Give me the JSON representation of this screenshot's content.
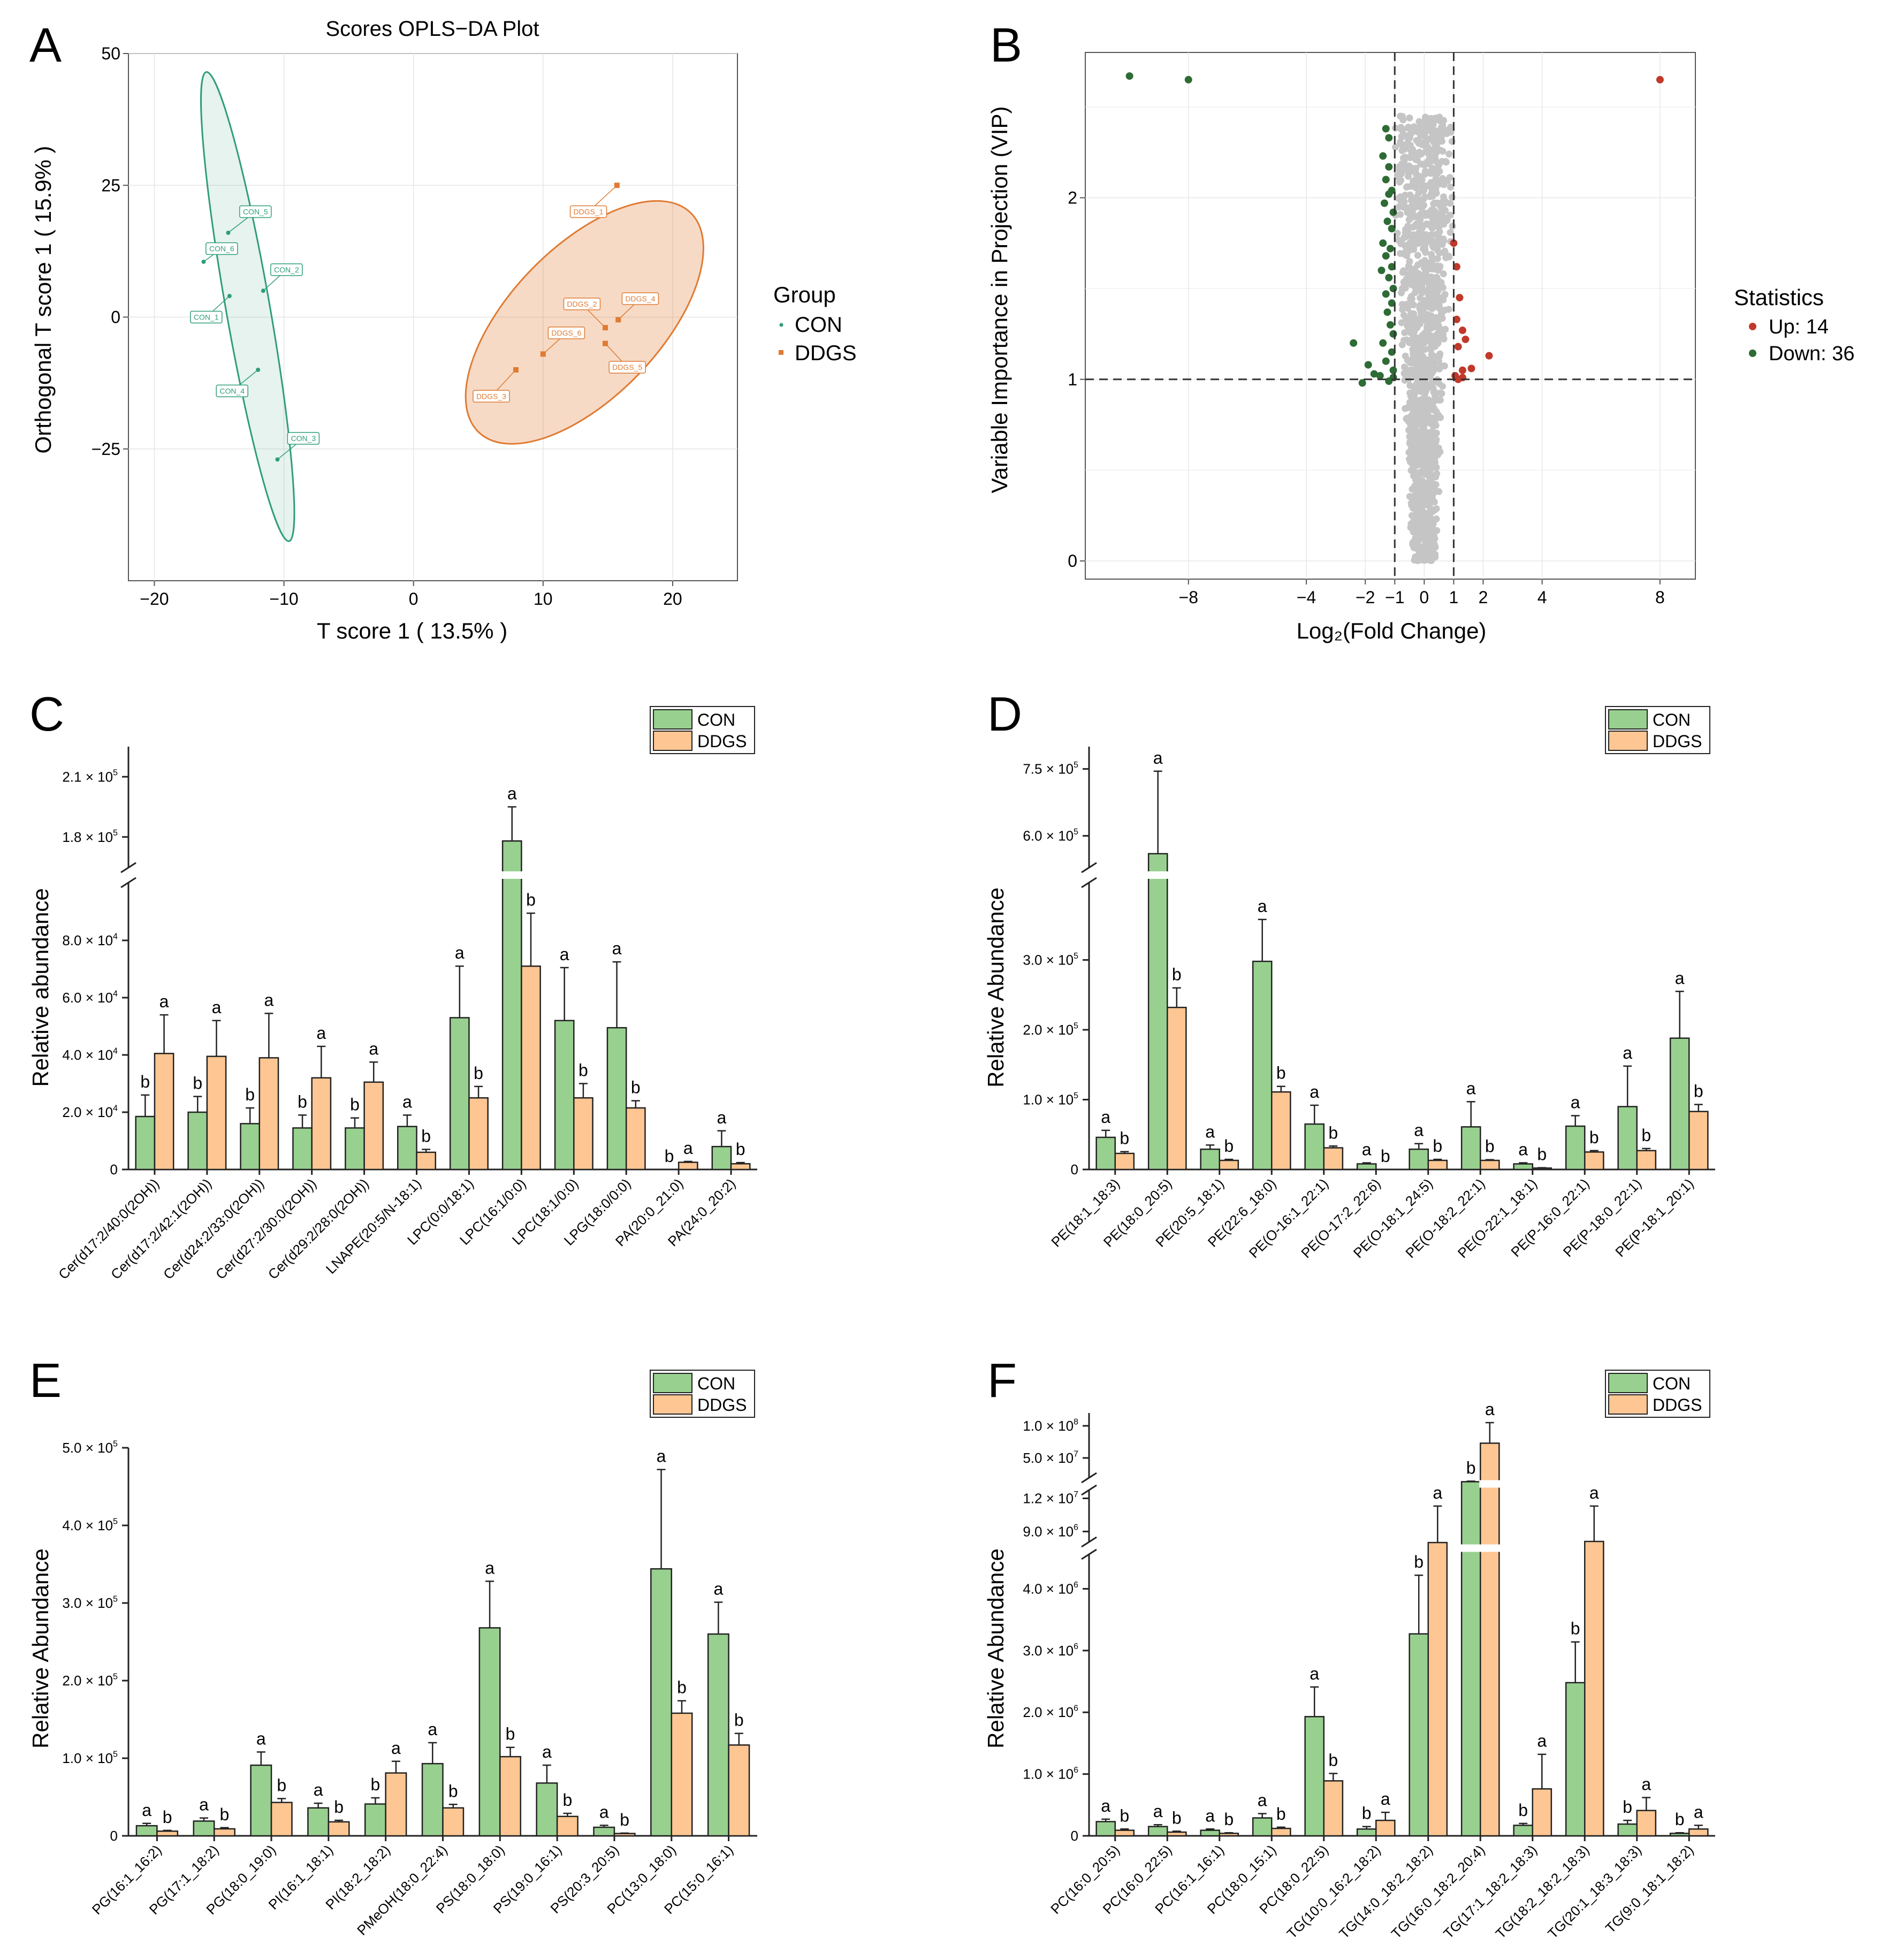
{
  "colors": {
    "con": "#98d08f",
    "ddgs": "#fdc692",
    "bar_edge": "#222222",
    "oplsCon": "#2f9e78",
    "oplsDdgs": "#e07b33",
    "up": "#c0392b",
    "down": "#2e6b35",
    "grey": "#c5c5c5"
  },
  "chart_data": [
    {
      "panel": "A",
      "type": "scatter",
      "title": "Scores OPLS−DA Plot",
      "xlabel": "T score 1 ( 13.5% )",
      "ylabel": "Orthogonal T score 1 ( 15.9% )",
      "xlim": [
        -22,
        25
      ],
      "ylim": [
        -50,
        50
      ],
      "xticks": [
        -20,
        -10,
        0,
        10,
        20
      ],
      "xtick_labels": [
        "−20",
        "−10",
        "0",
        "10",
        "20"
      ],
      "yticks": [
        -25,
        0,
        25,
        50
      ],
      "ytick_labels": [
        "−25",
        "0",
        "25",
        "50"
      ],
      "legend_title": "Group",
      "legend": [
        "CON",
        "DDGS"
      ],
      "series": [
        {
          "name": "CON",
          "points": [
            {
              "label": "CON_1",
              "x": -14.2,
              "y": 4,
              "lx": -16,
              "ly": 0
            },
            {
              "label": "CON_2",
              "x": -11.6,
              "y": 5,
              "lx": -9.8,
              "ly": 9
            },
            {
              "label": "CON_3",
              "x": -10.5,
              "y": -27,
              "lx": -8.5,
              "ly": -23
            },
            {
              "label": "CON_4",
              "x": -12.0,
              "y": -10,
              "lx": -14.0,
              "ly": -14
            },
            {
              "label": "CON_5",
              "x": -14.3,
              "y": 16,
              "lx": -12.2,
              "ly": 20
            },
            {
              "label": "CON_6",
              "x": -16.2,
              "y": 10.5,
              "lx": -14.8,
              "ly": 13
            }
          ]
        },
        {
          "name": "DDGS",
          "points": [
            {
              "label": "DDGS_1",
              "x": 15.7,
              "y": 25,
              "lx": 13.5,
              "ly": 20
            },
            {
              "label": "DDGS_2",
              "x": 14.8,
              "y": -2,
              "lx": 13.0,
              "ly": 2.5
            },
            {
              "label": "DDGS_3",
              "x": 7.9,
              "y": -10,
              "lx": 6.0,
              "ly": -15
            },
            {
              "label": "DDGS_4",
              "x": 15.8,
              "y": -0.5,
              "lx": 17.5,
              "ly": 3.5
            },
            {
              "label": "DDGS_5",
              "x": 14.8,
              "y": -5,
              "lx": 16.5,
              "ly": -9.5
            },
            {
              "label": "DDGS_6",
              "x": 10.0,
              "y": -7,
              "lx": 11.8,
              "ly": -3
            }
          ]
        }
      ]
    },
    {
      "panel": "B",
      "type": "scatter",
      "xlabel": "Log₂(Fold Change)",
      "ylabel": "Variable Importance in Projection (VIP)",
      "xlim": [
        -11.5,
        9.2
      ],
      "ylim": [
        -0.1,
        2.8
      ],
      "xticks": [
        -8,
        -4,
        -2,
        -1,
        0,
        1,
        2,
        4,
        8
      ],
      "xtick_labels": [
        "−8",
        "−4",
        "−2",
        "−1",
        "0",
        "1",
        "2",
        "4",
        "8"
      ],
      "yticks": [
        0,
        1,
        2
      ],
      "ytick_labels": [
        "0",
        "1",
        "2"
      ],
      "thresholds": {
        "x": [
          -1,
          1
        ],
        "y": 1
      },
      "legend_title": "Statistics",
      "legend": [
        "Up: 14",
        "Down: 36"
      ],
      "up": [
        [
          8.0,
          2.65
        ],
        [
          1.0,
          1.75
        ],
        [
          1.1,
          1.62
        ],
        [
          1.2,
          1.45
        ],
        [
          1.1,
          1.33
        ],
        [
          1.3,
          1.27
        ],
        [
          1.4,
          1.22
        ],
        [
          1.15,
          1.18
        ],
        [
          1.3,
          1.05
        ],
        [
          2.2,
          1.13
        ],
        [
          1.05,
          1.02
        ],
        [
          1.3,
          1.01
        ],
        [
          1.6,
          1.06
        ],
        [
          1.15,
          1.0
        ]
      ],
      "down": [
        [
          -10.0,
          2.67
        ],
        [
          -8.0,
          2.65
        ],
        [
          -1.3,
          2.38
        ],
        [
          -1.2,
          2.33
        ],
        [
          -1.4,
          2.23
        ],
        [
          -1.2,
          2.17
        ],
        [
          -1.3,
          2.1
        ],
        [
          -1.1,
          2.04
        ],
        [
          -1.2,
          2.02
        ],
        [
          -1.35,
          1.97
        ],
        [
          -1.05,
          1.92
        ],
        [
          -1.25,
          1.87
        ],
        [
          -1.1,
          1.83
        ],
        [
          -1.4,
          1.75
        ],
        [
          -1.15,
          1.72
        ],
        [
          -1.3,
          1.68
        ],
        [
          -1.1,
          1.62
        ],
        [
          -1.45,
          1.6
        ],
        [
          -1.2,
          1.56
        ],
        [
          -1.05,
          1.5
        ],
        [
          -1.3,
          1.47
        ],
        [
          -1.1,
          1.42
        ],
        [
          -1.25,
          1.37
        ],
        [
          -1.15,
          1.3
        ],
        [
          -1.05,
          1.25
        ],
        [
          -1.4,
          1.2
        ],
        [
          -2.4,
          1.2
        ],
        [
          -1.1,
          1.15
        ],
        [
          -1.3,
          1.1
        ],
        [
          -1.05,
          1.05
        ],
        [
          -1.9,
          1.08
        ],
        [
          -2.1,
          0.98
        ],
        [
          -1.5,
          1.02
        ],
        [
          -1.2,
          0.99
        ],
        [
          -1.7,
          1.03
        ],
        [
          -1.05,
          1.01
        ]
      ]
    },
    {
      "panel": "C",
      "type": "bar",
      "ylabel": "Relative abundance",
      "legend": [
        "CON",
        "DDGS"
      ],
      "lower": {
        "max": 100000,
        "ticks": [
          0,
          20000,
          40000,
          60000,
          80000
        ],
        "tick_labels": [
          {
            "base": "0",
            "exp": ""
          },
          {
            "base": "2.0 × 10",
            "exp": "4"
          },
          {
            "base": "4.0 × 10",
            "exp": "4"
          },
          {
            "base": "6.0 × 10",
            "exp": "4"
          },
          {
            "base": "8.0 × 10",
            "exp": "4"
          }
        ]
      },
      "upper": {
        "min": 165000,
        "max": 225000,
        "ticks": [
          180000,
          210000
        ],
        "tick_labels": [
          {
            "base": "1.8 × 10",
            "exp": "5"
          },
          {
            "base": "2.1 × 10",
            "exp": "5"
          }
        ]
      },
      "categories": [
        "Cer(d17:2/40:0(2OH))",
        "Cer(d17:2/42:1(2OH))",
        "Cer(d24:2/33:0(2OH))",
        "Cer(d27:2/30:0(2OH))",
        "Cer(d29:2/28:0(2OH))",
        "LNAPE(20:5/N-18:1)",
        "LPC(0:0/18:1)",
        "LPC(16:1/0:0)",
        "LPC(18:1/0:0)",
        "LPG(18:0/0:0)",
        "PA(20:0_21:0)",
        "PA(24:0_20:2)"
      ],
      "series": [
        {
          "name": "CON",
          "values": [
            18500,
            20000,
            16000,
            14500,
            14500,
            15000,
            53000,
            178000,
            52000,
            49500,
            0,
            8000
          ],
          "errors": [
            7500,
            5500,
            5500,
            4500,
            3500,
            4000,
            18000,
            17000,
            18500,
            23000,
            0,
            5500
          ],
          "letters": [
            "b",
            "b",
            "b",
            "b",
            "b",
            "a",
            "a",
            "a",
            "a",
            "a",
            "b",
            "a"
          ]
        },
        {
          "name": "DDGS",
          "values": [
            40500,
            39500,
            39000,
            32000,
            30500,
            6000,
            25000,
            71000,
            25000,
            21500,
            2500,
            2000
          ],
          "errors": [
            13500,
            12500,
            15500,
            11000,
            7000,
            1000,
            4000,
            18500,
            5000,
            2500,
            300,
            400
          ],
          "letters": [
            "a",
            "a",
            "a",
            "a",
            "a",
            "b",
            "b",
            "b",
            "b",
            "b",
            "a",
            "b"
          ]
        }
      ]
    },
    {
      "panel": "D",
      "type": "bar",
      "ylabel": "Relative Abundance",
      "legend": [
        "CON",
        "DDGS"
      ],
      "lower": {
        "max": 410000,
        "ticks": [
          0,
          100000,
          200000,
          300000
        ],
        "tick_labels": [
          {
            "base": "0",
            "exp": ""
          },
          {
            "base": "1.0 × 10",
            "exp": "5"
          },
          {
            "base": "2.0 × 10",
            "exp": "5"
          },
          {
            "base": "3.0 × 10",
            "exp": "5"
          }
        ]
      },
      "upper": {
        "min": 530000,
        "max": 800000,
        "ticks": [
          600000,
          750000
        ],
        "tick_labels": [
          {
            "base": "6.0 × 10",
            "exp": "5"
          },
          {
            "base": "7.5 × 10",
            "exp": "5"
          }
        ]
      },
      "categories": [
        "PE(18:1_18:3)",
        "PE(18:0_20:5)",
        "PE(20:5_18:1)",
        "PE(22:6_18:0)",
        "PE(O-16:1_22:1)",
        "PE(O-17:2_22:6)",
        "PE(O-18:1_24:5)",
        "PE(O-18:2_22:1)",
        "PE(O-22:1_18:1)",
        "PE(P-16:0_22:1)",
        "PE(P-18:0_22:1)",
        "PE(P-18:1_20:1)"
      ],
      "series": [
        {
          "name": "CON",
          "values": [
            46000,
            560000,
            29000,
            298000,
            65000,
            8000,
            29000,
            61000,
            8000,
            62000,
            90000,
            188000
          ],
          "errors": [
            10000,
            185000,
            6000,
            60000,
            27000,
            1500,
            8000,
            36000,
            1500,
            15000,
            58000,
            67000
          ],
          "letters": [
            "a",
            "a",
            "a",
            "a",
            "a",
            "a",
            "a",
            "a",
            "a",
            "a",
            "a",
            "a"
          ]
        },
        {
          "name": "DDGS",
          "values": [
            23000,
            232000,
            13000,
            111000,
            31000,
            0,
            13000,
            13000,
            2000,
            25000,
            27000,
            83000
          ],
          "errors": [
            2500,
            28000,
            1500,
            8000,
            2500,
            0,
            1500,
            1000,
            500,
            2000,
            3000,
            10000
          ],
          "letters": [
            "b",
            "b",
            "b",
            "b",
            "b",
            "b",
            "b",
            "b",
            "b",
            "b",
            "b",
            "b"
          ]
        }
      ]
    },
    {
      "panel": "E",
      "type": "bar",
      "ylabel": "Relative Abundance",
      "legend": [
        "CON",
        "DDGS"
      ],
      "lower": {
        "max": 500000,
        "ticks": [
          0,
          100000,
          200000,
          300000,
          400000,
          500000
        ],
        "tick_labels": [
          {
            "base": "0",
            "exp": ""
          },
          {
            "base": "1.0 × 10",
            "exp": "5"
          },
          {
            "base": "2.0 × 10",
            "exp": "5"
          },
          {
            "base": "3.0 × 10",
            "exp": "5"
          },
          {
            "base": "4.0 × 10",
            "exp": "5"
          },
          {
            "base": "5.0 × 10",
            "exp": "5"
          }
        ]
      },
      "categories": [
        "PG(16:1_16:2)",
        "PG(17:1_18:2)",
        "PG(18:0_19:0)",
        "PI(16:1_18:1)",
        "PI(18:2_18:2)",
        "PMeOH(18:0_22:4)",
        "PS(18:0_18:0)",
        "PS(19:0_16:1)",
        "PS(20:3_20:5)",
        "PC(13:0_18:0)",
        "PC(15:0_16:1)"
      ],
      "series": [
        {
          "name": "CON",
          "values": [
            13000,
            19000,
            91000,
            36000,
            41000,
            93000,
            268000,
            68000,
            11000,
            344000,
            260000
          ],
          "errors": [
            3000,
            4000,
            17000,
            6000,
            8000,
            27000,
            60000,
            23000,
            2500,
            128000,
            41000
          ],
          "letters": [
            "a",
            "a",
            "a",
            "a",
            "b",
            "a",
            "a",
            "a",
            "a",
            "a",
            "a"
          ]
        },
        {
          "name": "DDGS",
          "values": [
            6000,
            9000,
            43000,
            18000,
            81000,
            36000,
            102000,
            25000,
            3000,
            158000,
            117000
          ],
          "errors": [
            1000,
            1500,
            5000,
            2000,
            15000,
            4500,
            12000,
            4000,
            500,
            16000,
            15000
          ],
          "letters": [
            "b",
            "b",
            "b",
            "b",
            "a",
            "b",
            "b",
            "b",
            "b",
            "b",
            "b"
          ]
        }
      ]
    },
    {
      "panel": "F",
      "type": "bar",
      "ylabel": "Relative Abundance",
      "legend": [
        "CON",
        "DDGS"
      ],
      "lower": {
        "max": 4550000,
        "ticks": [
          0,
          1000000,
          2000000,
          3000000,
          4000000
        ],
        "tick_labels": [
          {
            "base": "0",
            "exp": ""
          },
          {
            "base": "1.0 × 10",
            "exp": "6"
          },
          {
            "base": "2.0 × 10",
            "exp": "6"
          },
          {
            "base": "3.0 × 10",
            "exp": "6"
          },
          {
            "base": "4.0 × 10",
            "exp": "6"
          }
        ]
      },
      "middle": {
        "min": 8100000,
        "max": 12700000,
        "ticks": [
          9000000,
          12000000
        ],
        "tick_labels": [
          {
            "base": "9.0 × 10",
            "exp": "6"
          },
          {
            "base": "1.2 × 10",
            "exp": "7"
          }
        ]
      },
      "upper": {
        "min": 20000000,
        "max": 120000000,
        "ticks": [
          50000000,
          100000000
        ],
        "tick_labels": [
          {
            "base": "5.0 × 10",
            "exp": "7"
          },
          {
            "base": "1.0 × 10",
            "exp": "8"
          }
        ]
      },
      "categories": [
        "PC(16:0_20:5)",
        "PC(16:0_22:5)",
        "PC(16:1_16:1)",
        "PC(18:0_15:1)",
        "PC(18:0_22:5)",
        "TG(10:0_16:2_18:2)",
        "TG(14:0_18:2_18:2)",
        "TG(16:0_18:2_20:4)",
        "TG(17:1_18:2_18:3)",
        "TG(18:2_18:2_18:3)",
        "TG(20:1_18:3_18:3)",
        "TG(9:0_18:1_18:2)"
      ],
      "series": [
        {
          "name": "CON",
          "values": [
            230000,
            150000,
            90000,
            290000,
            1930000,
            110000,
            3270000,
            13000000,
            170000,
            2480000,
            190000,
            40000
          ],
          "errors": [
            40000,
            30000,
            20000,
            70000,
            480000,
            40000,
            950000,
            900000,
            30000,
            660000,
            60000,
            10000
          ],
          "letters": [
            "a",
            "a",
            "a",
            "a",
            "a",
            "b",
            "b",
            "b",
            "b",
            "b",
            "b",
            "b"
          ]
        },
        {
          "name": "DDGS",
          "values": [
            90000,
            60000,
            40000,
            120000,
            890000,
            250000,
            8000000,
            73000000,
            760000,
            8100000,
            410000,
            110000
          ],
          "errors": [
            20000,
            15000,
            10000,
            20000,
            120000,
            130000,
            3300000,
            32000000,
            560000,
            3200000,
            210000,
            60000
          ],
          "letters": [
            "b",
            "b",
            "b",
            "b",
            "b",
            "a",
            "a",
            "a",
            "a",
            "a",
            "a",
            "a"
          ]
        }
      ]
    }
  ]
}
